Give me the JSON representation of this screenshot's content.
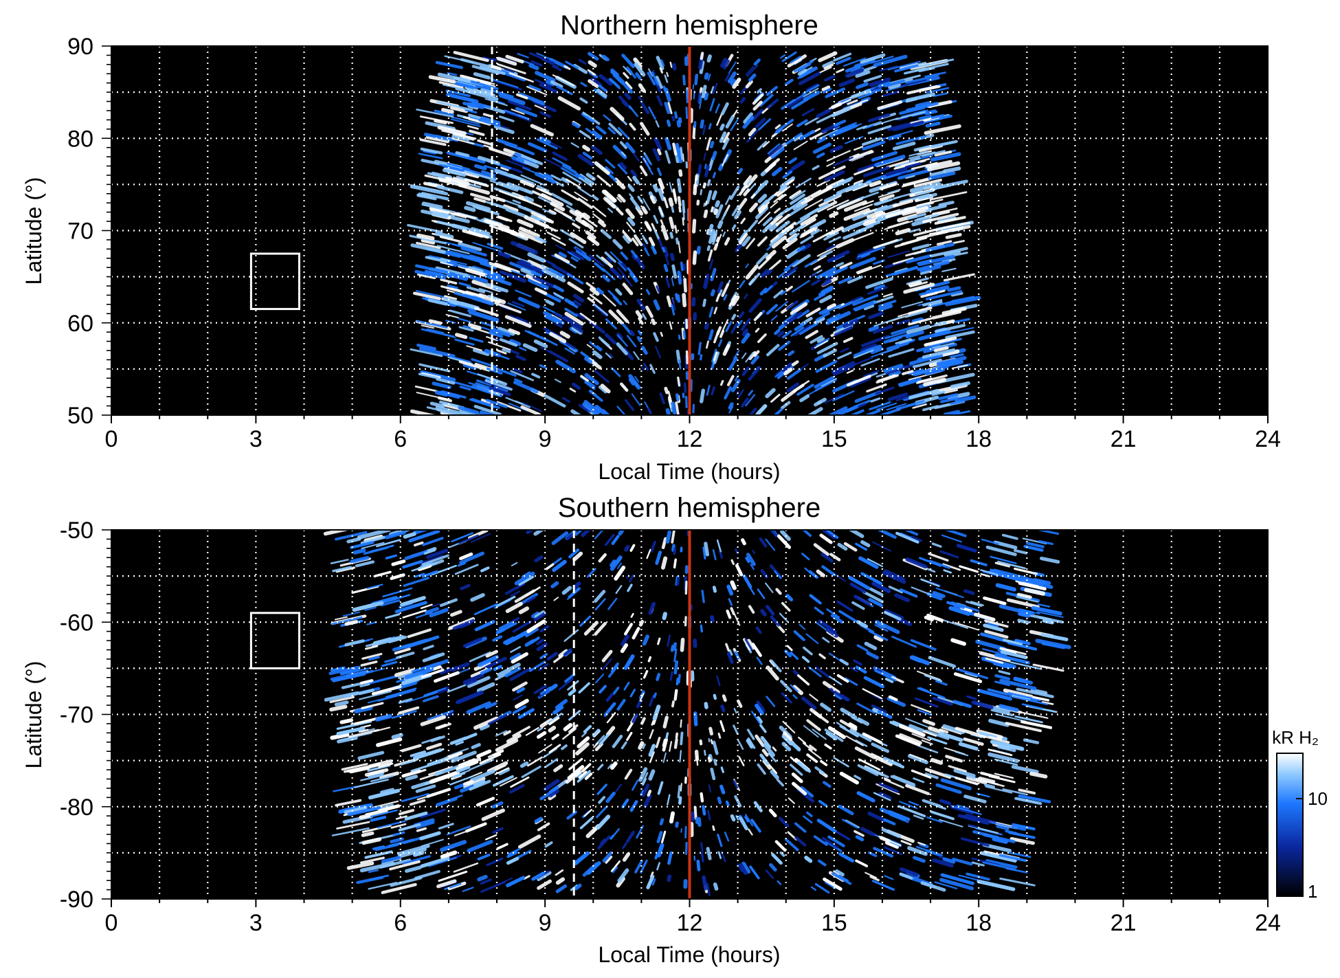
{
  "colors": {
    "background": "#000000",
    "bright": "#ffffff",
    "mid_blue": "#1e78ff",
    "light_blue": "#8cc8ff",
    "dark_blue": "#0a28a0",
    "noon_line": "#cc3311",
    "grid": "#ffffff"
  },
  "chart_data": [
    {
      "type": "heatmap",
      "title": "Northern hemisphere",
      "xlabel": "Local Time (hours)",
      "ylabel": "Latitude (°)",
      "xlim": [
        0,
        24
      ],
      "ylim": [
        50,
        90
      ],
      "xticks": [
        "0",
        "3",
        "6",
        "9",
        "12",
        "15",
        "18",
        "21",
        "24"
      ],
      "yticks": [
        "50",
        "60",
        "70",
        "80",
        "90"
      ],
      "grid": true,
      "emission_extent_lt": [
        6.5,
        18.0
      ],
      "auroral_oval_lat": 72,
      "noon_line_lt": 12,
      "dashed_marker_lt": 7.9,
      "box": {
        "lt": [
          2.9,
          3.9
        ],
        "lat": [
          61.5,
          67.5
        ]
      }
    },
    {
      "type": "heatmap",
      "title": "Southern hemisphere",
      "xlabel": "Local Time (hours)",
      "ylabel": "Latitude (°)",
      "xlim": [
        0,
        24
      ],
      "ylim": [
        -90,
        -50
      ],
      "xticks": [
        "0",
        "3",
        "6",
        "9",
        "12",
        "15",
        "18",
        "21",
        "24"
      ],
      "yticks": [
        "-50",
        "-60",
        "-70",
        "-80",
        "-90"
      ],
      "grid": true,
      "emission_extent_lt": [
        4.7,
        20.0
      ],
      "auroral_oval_lat": -74,
      "noon_line_lt": 12,
      "dashed_marker_lt": 9.6,
      "box": {
        "lt": [
          2.9,
          3.9
        ],
        "lat": [
          -65,
          -59
        ]
      }
    }
  ],
  "colorbar": {
    "unit_label": "kR H₂",
    "scale": "log",
    "range": [
      1,
      30
    ],
    "ticks": [
      "1",
      "10"
    ]
  }
}
